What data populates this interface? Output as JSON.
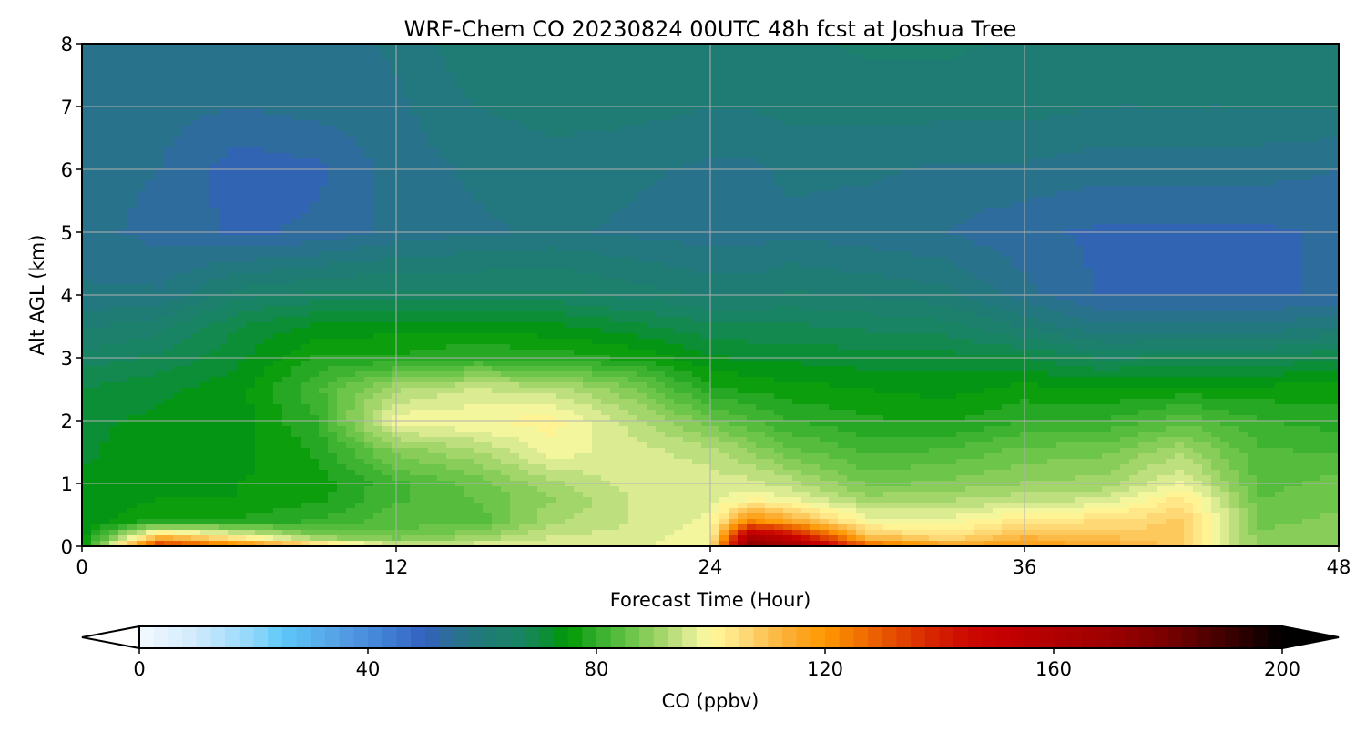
{
  "chart_data": {
    "type": "heatmap",
    "title": "WRF-Chem CO  20230824 00UTC 48h fcst at Joshua Tree",
    "xlabel": "Forecast Time (Hour)",
    "ylabel": "Alt AGL (km)",
    "xlim": [
      0,
      48
    ],
    "ylim": [
      0,
      8
    ],
    "xticks": [
      "0",
      "12",
      "24",
      "36",
      "48"
    ],
    "yticks": [
      "0",
      "1",
      "2",
      "3",
      "4",
      "5",
      "6",
      "7",
      "8"
    ],
    "grid": true,
    "colorbar": {
      "label": "CO  (ppbv)",
      "range": [
        0,
        200
      ],
      "step": 2.5,
      "extend": "both",
      "ticks": [
        "0",
        "40",
        "80",
        "120",
        "160",
        "200"
      ],
      "stops": [
        [
          0,
          "#f4f9ff"
        ],
        [
          10,
          "#cfeafc"
        ],
        [
          20,
          "#8fd6fb"
        ],
        [
          25,
          "#5ec8f8"
        ],
        [
          35,
          "#55a0e4"
        ],
        [
          45,
          "#3c78d0"
        ],
        [
          50,
          "#3460c0"
        ],
        [
          55,
          "#2a7090"
        ],
        [
          60,
          "#207a7a"
        ],
        [
          67,
          "#188560"
        ],
        [
          72,
          "#0a8f30"
        ],
        [
          75,
          "#009900"
        ],
        [
          78,
          "#20a520"
        ],
        [
          82,
          "#45b535"
        ],
        [
          86,
          "#6ac448"
        ],
        [
          90,
          "#95d160"
        ],
        [
          94,
          "#c0e080"
        ],
        [
          98,
          "#eef4a0"
        ],
        [
          100,
          "#fff999"
        ],
        [
          105,
          "#ffe080"
        ],
        [
          110,
          "#fcc050"
        ],
        [
          115,
          "#fba828"
        ],
        [
          120,
          "#ff9800"
        ],
        [
          125,
          "#f27800"
        ],
        [
          130,
          "#e85800"
        ],
        [
          138,
          "#d82800"
        ],
        [
          145,
          "#cc0a00"
        ],
        [
          150,
          "#c80000"
        ],
        [
          160,
          "#b00000"
        ],
        [
          170,
          "#9c0000"
        ],
        [
          180,
          "#780000"
        ],
        [
          190,
          "#400000"
        ],
        [
          200,
          "#000000"
        ]
      ]
    },
    "x_hours": [
      0,
      3,
      6,
      9,
      12,
      15,
      18,
      21,
      24,
      25.5,
      27,
      30,
      33,
      36,
      39,
      42,
      45,
      48
    ],
    "alt_km": [
      0,
      0.15,
      0.4,
      0.75,
      1,
      1.5,
      2,
      2.5,
      3,
      3.5,
      4,
      5,
      6,
      7,
      8
    ],
    "co_ppbv": [
      [
        72,
        73,
        73,
        73,
        73,
        72,
        72,
        70,
        66,
        62,
        58,
        56,
        56,
        56,
        56
      ],
      [
        140,
        110,
        78,
        75,
        74,
        74,
        73,
        72,
        68,
        64,
        58,
        54,
        55,
        56,
        56
      ],
      [
        125,
        100,
        78,
        75,
        75,
        74,
        74,
        74,
        72,
        70,
        64,
        52,
        51,
        55,
        56
      ],
      [
        110,
        88,
        80,
        77,
        76,
        78,
        80,
        82,
        78,
        73,
        66,
        53,
        52,
        56,
        56
      ],
      [
        96,
        86,
        84,
        82,
        82,
        88,
        99,
        92,
        78,
        74,
        66,
        56,
        56,
        57,
        58
      ],
      [
        97,
        90,
        83,
        85,
        86,
        92,
        100,
        95,
        80,
        74,
        66,
        57,
        58,
        60,
        62
      ],
      [
        98,
        95,
        92,
        90,
        92,
        99,
        101,
        94,
        79,
        73,
        66,
        58,
        59,
        61,
        62
      ],
      [
        97,
        96,
        95,
        95,
        96,
        96,
        94,
        88,
        77,
        71,
        64,
        57,
        58,
        61,
        62
      ],
      [
        100,
        99,
        98,
        97,
        96,
        94,
        86,
        78,
        73,
        68,
        62,
        56,
        57,
        60,
        62
      ],
      [
        178,
        162,
        122,
        100,
        96,
        90,
        83,
        77,
        72,
        68,
        62,
        56,
        57,
        60,
        62
      ],
      [
        170,
        150,
        115,
        98,
        94,
        86,
        80,
        76,
        72,
        68,
        63,
        57,
        58,
        61,
        62
      ],
      [
        130,
        110,
        99,
        91,
        87,
        82,
        78,
        75,
        71,
        67,
        62,
        56,
        58,
        61,
        63
      ],
      [
        118,
        104,
        98,
        92,
        88,
        83,
        77,
        74,
        71,
        66,
        61,
        55,
        57,
        61,
        63
      ],
      [
        118,
        112,
        104,
        94,
        90,
        86,
        80,
        76,
        70,
        62,
        56,
        53,
        57,
        61,
        62
      ],
      [
        115,
        110,
        105,
        95,
        91,
        87,
        80,
        75,
        67,
        58,
        52,
        52,
        56,
        60,
        62
      ],
      [
        108,
        108,
        108,
        104,
        98,
        92,
        84,
        76,
        68,
        58,
        52,
        52,
        56,
        60,
        62
      ],
      [
        88,
        88,
        87,
        85,
        84,
        83,
        80,
        76,
        68,
        58,
        52,
        52,
        56,
        60,
        62
      ],
      [
        89,
        88,
        88,
        87,
        86,
        82,
        79,
        76,
        70,
        60,
        53,
        53,
        55,
        60,
        62
      ]
    ]
  }
}
